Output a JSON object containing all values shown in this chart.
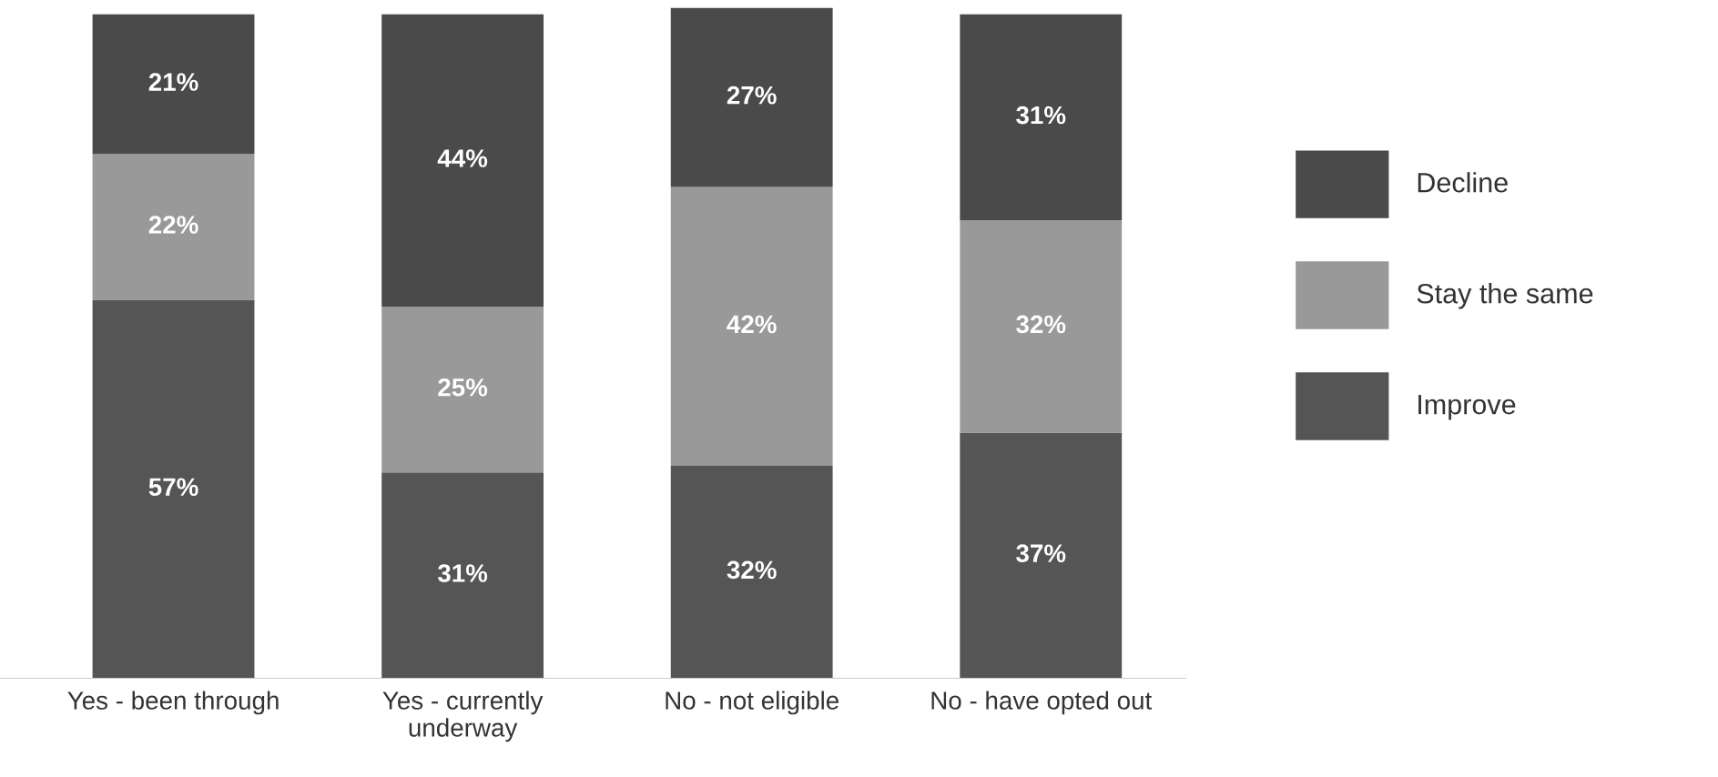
{
  "chart_data": {
    "type": "bar",
    "stacked": true,
    "categories": [
      "Yes - been through",
      "Yes - currently\nunderway",
      "No - not eligible",
      "No - have opted out"
    ],
    "series": [
      {
        "name": "Improve",
        "color": "#555555",
        "values": [
          57,
          31,
          32,
          37
        ],
        "value_labels": [
          "57%",
          "31%",
          "32%",
          "37%"
        ]
      },
      {
        "name": "Stay the same",
        "color": "#999999",
        "values": [
          22,
          25,
          42,
          32
        ],
        "value_labels": [
          "22%",
          "25%",
          "42%",
          "32%"
        ]
      },
      {
        "name": "Decline",
        "color": "#4a4a4a",
        "values": [
          21,
          44,
          27,
          31
        ],
        "value_labels": [
          "21%",
          "44%",
          "27%",
          "31%"
        ]
      }
    ],
    "ylim": [
      0,
      101
    ],
    "tick_labels": "x",
    "grid": false,
    "legend": "right"
  }
}
